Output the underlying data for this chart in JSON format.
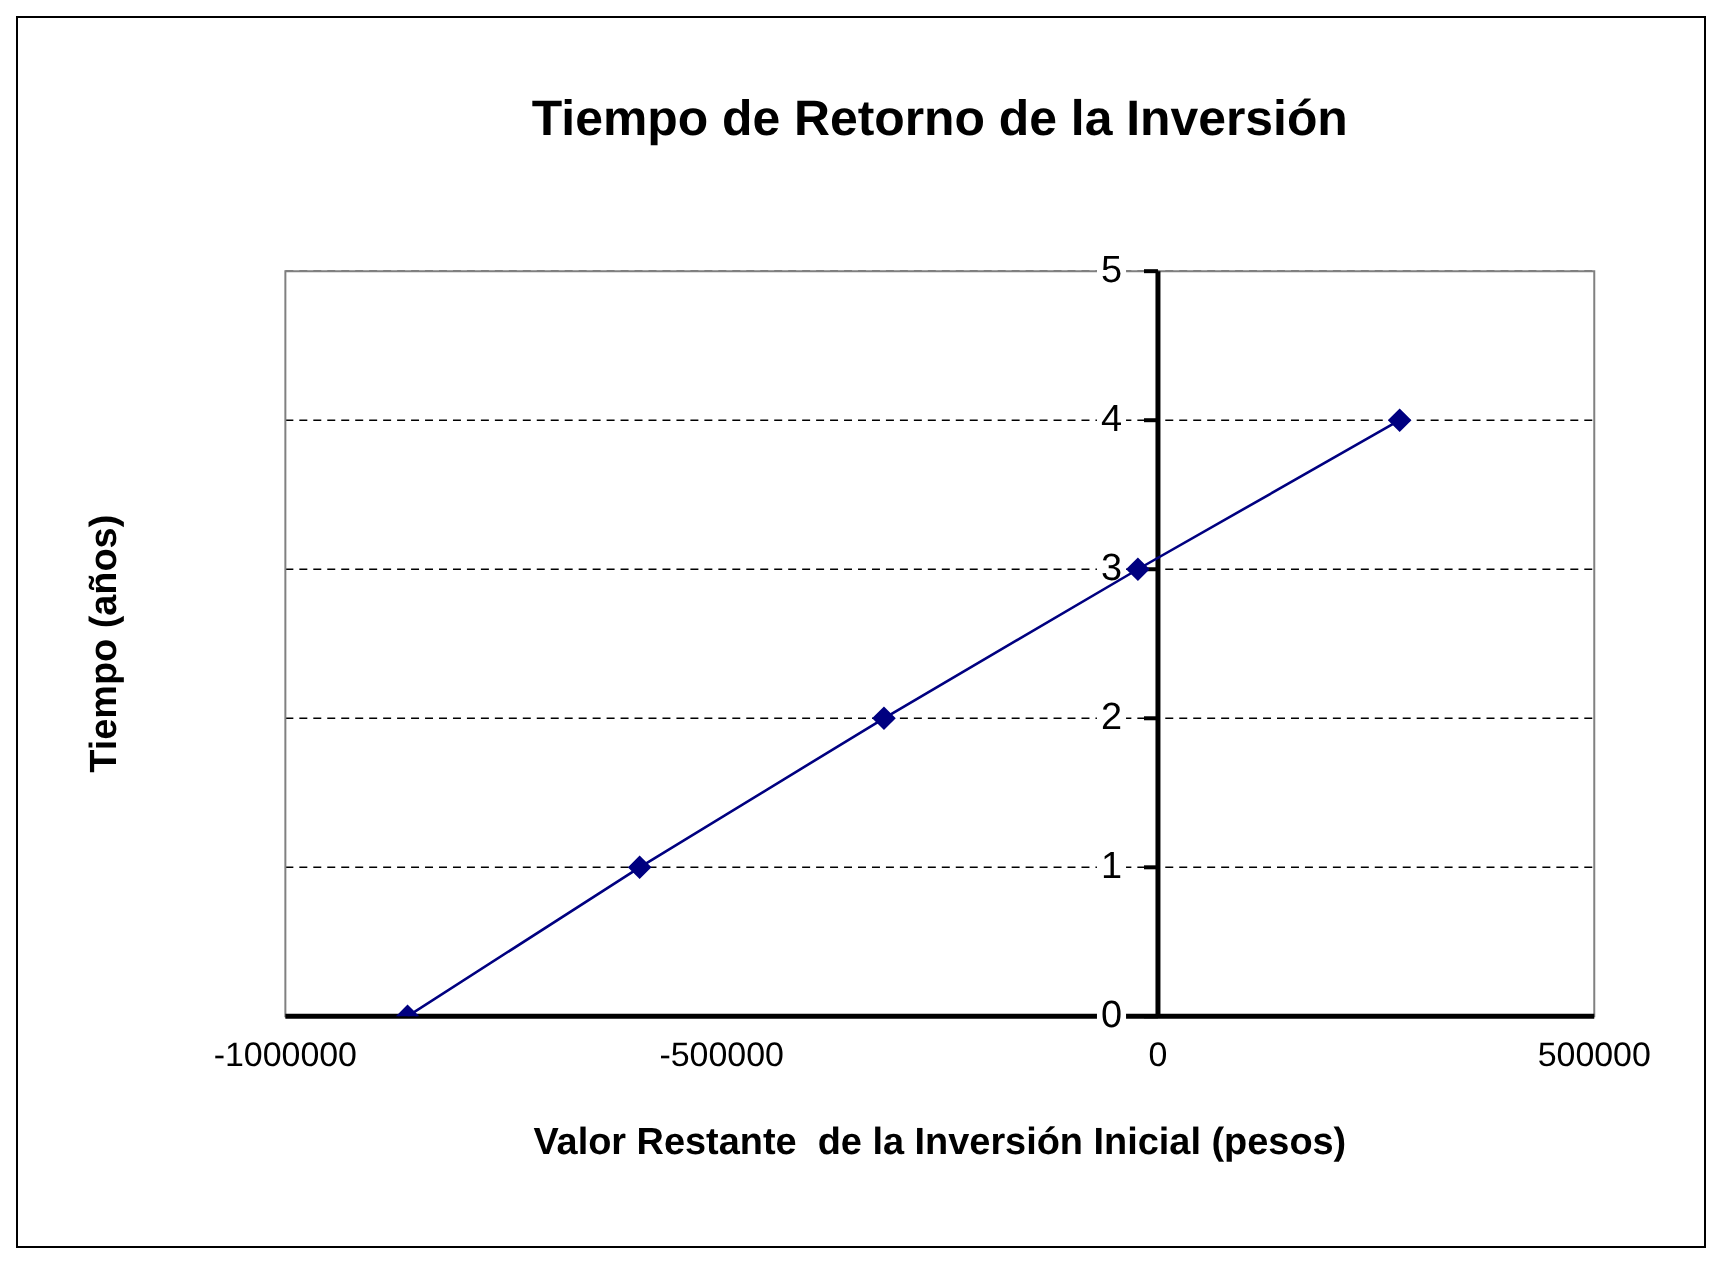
{
  "chart_data": {
    "type": "line",
    "title": "Tiempo de Retorno de la Inversión",
    "xlabel": "Valor Restante  de la Inversión Inicial (pesos)",
    "ylabel": "Tiempo (años)",
    "x": [
      -860000,
      -594000,
      -314000,
      -23000,
      277000
    ],
    "series": [
      {
        "color": "#000080",
        "values": [
          0,
          1,
          2,
          3,
          4
        ]
      }
    ],
    "xlim": [
      -1000000,
      500000
    ],
    "xticks": [
      -1000000,
      -500000,
      0,
      500000
    ],
    "ylim": [
      0,
      5
    ],
    "yticks": [
      0,
      1,
      2,
      3,
      4,
      5
    ],
    "grid": "y",
    "legend": false,
    "marker": "diamond",
    "line_style": "solid"
  }
}
